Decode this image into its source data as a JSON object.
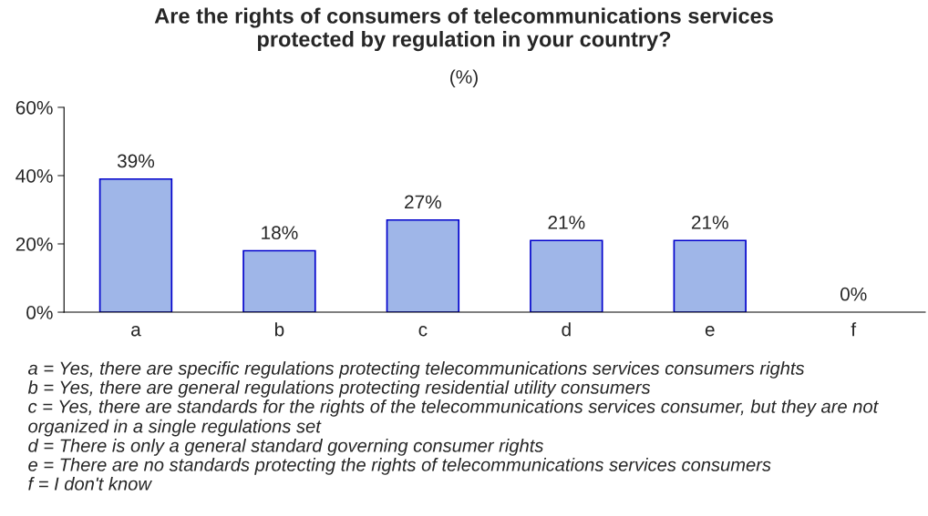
{
  "chart_data": {
    "type": "bar",
    "title": "Are the rights of consumers of telecommunications services\nprotected by regulation in your country?",
    "subtitle": "(%)",
    "categories": [
      "a",
      "b",
      "c",
      "d",
      "e",
      "f"
    ],
    "values": [
      39,
      18,
      27,
      21,
      21,
      0
    ],
    "value_labels": [
      "39%",
      "18%",
      "27%",
      "21%",
      "21%",
      "0%"
    ],
    "color": "#9fb6e8",
    "ylim": [
      0,
      60
    ],
    "yticks": [
      {
        "value": 0,
        "label": "0%"
      },
      {
        "value": 20,
        "label": "20%"
      },
      {
        "value": 40,
        "label": "40%"
      },
      {
        "value": 60,
        "label": "60%"
      }
    ],
    "grid": false,
    "legend": false,
    "annotations": [
      "a = Yes, there are specific regulations protecting telecommunications services consumers rights",
      "b = Yes, there are general regulations protecting residential utility consumers",
      "c = Yes, there are standards for the rights of the telecommunications services consumer, but they are not organized in a single regulations set",
      "d = There is only a general standard governing consumer rights",
      "e = There are no standards protecting the rights of telecommunications services consumers",
      "f = I don't know"
    ]
  }
}
